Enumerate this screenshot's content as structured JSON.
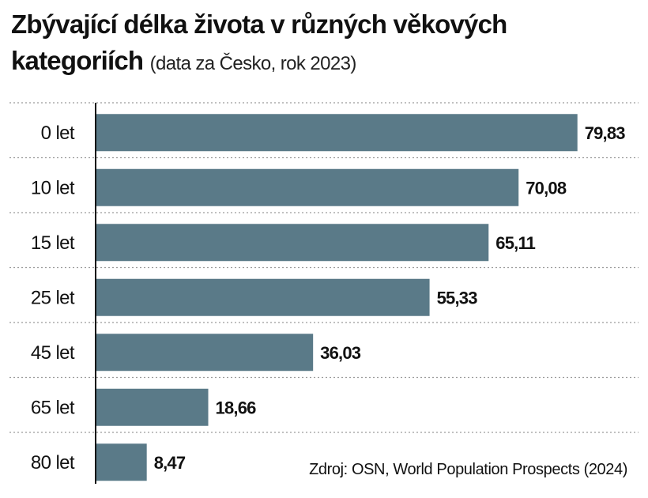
{
  "chart_data": {
    "type": "bar",
    "orientation": "horizontal",
    "title": "Zbývající délka života v různých věkových kategoriích",
    "subtitle": "(data za Česko, rok 2023)",
    "categories": [
      "0 let",
      "10 let",
      "15 let",
      "25 let",
      "45 let",
      "65 let",
      "80 let"
    ],
    "values": [
      79.83,
      70.08,
      65.11,
      55.33,
      36.03,
      18.66,
      8.47
    ],
    "value_labels": [
      "79,83",
      "70,08",
      "65,11",
      "55,33",
      "36,03",
      "18,66",
      "8,47"
    ],
    "xlim": [
      0,
      80
    ],
    "grid": "dotted row separators",
    "source": "Zdroj: OSN, World Population Prospects (2024)",
    "colors": {
      "bar": "#5a7a88",
      "text": "#111111",
      "separator": "#9a9a9a"
    }
  }
}
